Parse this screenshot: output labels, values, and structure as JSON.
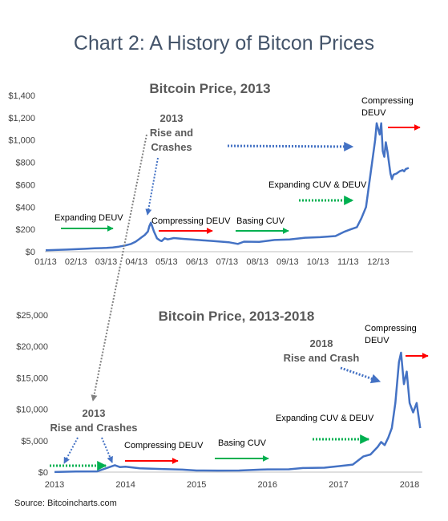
{
  "main_title": "Chart 2: A History of Bitcon Prices",
  "source": "Source: Bitcoincharts.com",
  "colors": {
    "line": "#4472c4",
    "green": "#00b050",
    "red": "#ff0000",
    "blue_dots": "#4472c4",
    "gray_dots": "#808080",
    "title_text": "#44546a"
  },
  "chart_data": [
    {
      "type": "line",
      "title": "Bitcoin Price, 2013",
      "xlabel": "",
      "ylabel": "",
      "x_ticks": [
        "01/13",
        "02/13",
        "03/13",
        "04/13",
        "05/13",
        "06/13",
        "07/13",
        "08/13",
        "09/13",
        "10/13",
        "11/13",
        "12/13"
      ],
      "y_ticks": [
        "$0",
        "$200",
        "$400",
        "$600",
        "$800",
        "$1,000",
        "$1,200",
        "$1,400"
      ],
      "ylim": [
        0,
        1400
      ],
      "grid": false,
      "series": [
        {
          "x": [
            0,
            0.3,
            0.7,
            1.0,
            1.3,
            1.6,
            2.0,
            2.2,
            2.4,
            2.6,
            2.8,
            2.95,
            3.05,
            3.15,
            3.25,
            3.35,
            3.4,
            3.45,
            3.55,
            3.65,
            3.75,
            3.8,
            3.9,
            4.0,
            4.2,
            4.5,
            5.0,
            5.5,
            6.0,
            6.3,
            6.5,
            7.0,
            7.5,
            8.0,
            8.5,
            9.0,
            9.5,
            9.8,
            10.0,
            10.2,
            10.35,
            10.5,
            10.6,
            10.7,
            10.8,
            10.85,
            10.9,
            10.95,
            11.0,
            11.05,
            11.1,
            11.15,
            11.2,
            11.25,
            11.3,
            11.35,
            11.4,
            11.5,
            11.6,
            11.7,
            11.75,
            11.8,
            11.9
          ],
          "y": [
            13,
            15,
            19,
            22,
            26,
            30,
            34,
            38,
            45,
            55,
            70,
            90,
            110,
            130,
            150,
            180,
            230,
            260,
            180,
            120,
            100,
            95,
            120,
            110,
            122,
            115,
            105,
            95,
            85,
            70,
            90,
            88,
            105,
            110,
            125,
            130,
            140,
            180,
            200,
            220,
            300,
            400,
            600,
            800,
            1000,
            1150,
            1100,
            1050,
            1150,
            900,
            850,
            980,
            900,
            800,
            700,
            650,
            690,
            700,
            720,
            730,
            720,
            740,
            750
          ]
        }
      ],
      "annotations": {
        "rise_line1": "2013",
        "rise_line2": "Rise and",
        "rise_line3": "Crashes",
        "expanding_deuv": "Expanding DEUV",
        "compressing_deuv": "Compressing DEUV",
        "basing_cuv": "Basing CUV",
        "expanding_cuv_deuv": "Expanding CUV & DEUV",
        "compressing_top1": "Compressing",
        "compressing_top2": "DEUV"
      }
    },
    {
      "type": "line",
      "title": "Bitcoin Price, 2013-2018",
      "xlabel": "",
      "ylabel": "",
      "x_ticks": [
        "2013",
        "2014",
        "2015",
        "2016",
        "2017",
        "2018"
      ],
      "y_ticks": [
        "$0",
        "$5,000",
        "$10,000",
        "$15,000",
        "$20,000",
        "$25,000"
      ],
      "ylim": [
        0,
        25000
      ],
      "grid": false,
      "series": [
        {
          "x": [
            2013.0,
            2013.3,
            2013.6,
            2013.8,
            2013.85,
            2013.92,
            2014.0,
            2014.2,
            2014.5,
            2014.8,
            2015.0,
            2015.3,
            2015.6,
            2015.9,
            2016.0,
            2016.3,
            2016.5,
            2016.8,
            2017.0,
            2017.2,
            2017.35,
            2017.45,
            2017.55,
            2017.6,
            2017.65,
            2017.7,
            2017.75,
            2017.8,
            2017.85,
            2017.88,
            2017.92,
            2017.96,
            2018.0,
            2018.05,
            2018.1,
            2018.15
          ],
          "y": [
            13,
            100,
            120,
            900,
            1100,
            800,
            850,
            600,
            500,
            400,
            250,
            240,
            260,
            400,
            430,
            450,
            650,
            700,
            950,
            1200,
            2500,
            2800,
            4000,
            4800,
            4300,
            5500,
            7000,
            11000,
            17500,
            19000,
            14000,
            16000,
            11000,
            9500,
            11000,
            7000
          ]
        }
      ],
      "annotations": {
        "rise_2013_line1": "2013",
        "rise_2013_line2": "Rise and Crashes",
        "compressing_deuv": "Compressing DEUV",
        "basing_cuv": "Basing CUV",
        "expanding_cuv_deuv": "Expanding CUV & DEUV",
        "rise_2018_line1": "2018",
        "rise_2018_line2": "Rise and Crash",
        "compressing_top1": "Compressing",
        "compressing_top2": "DEUV"
      }
    }
  ]
}
